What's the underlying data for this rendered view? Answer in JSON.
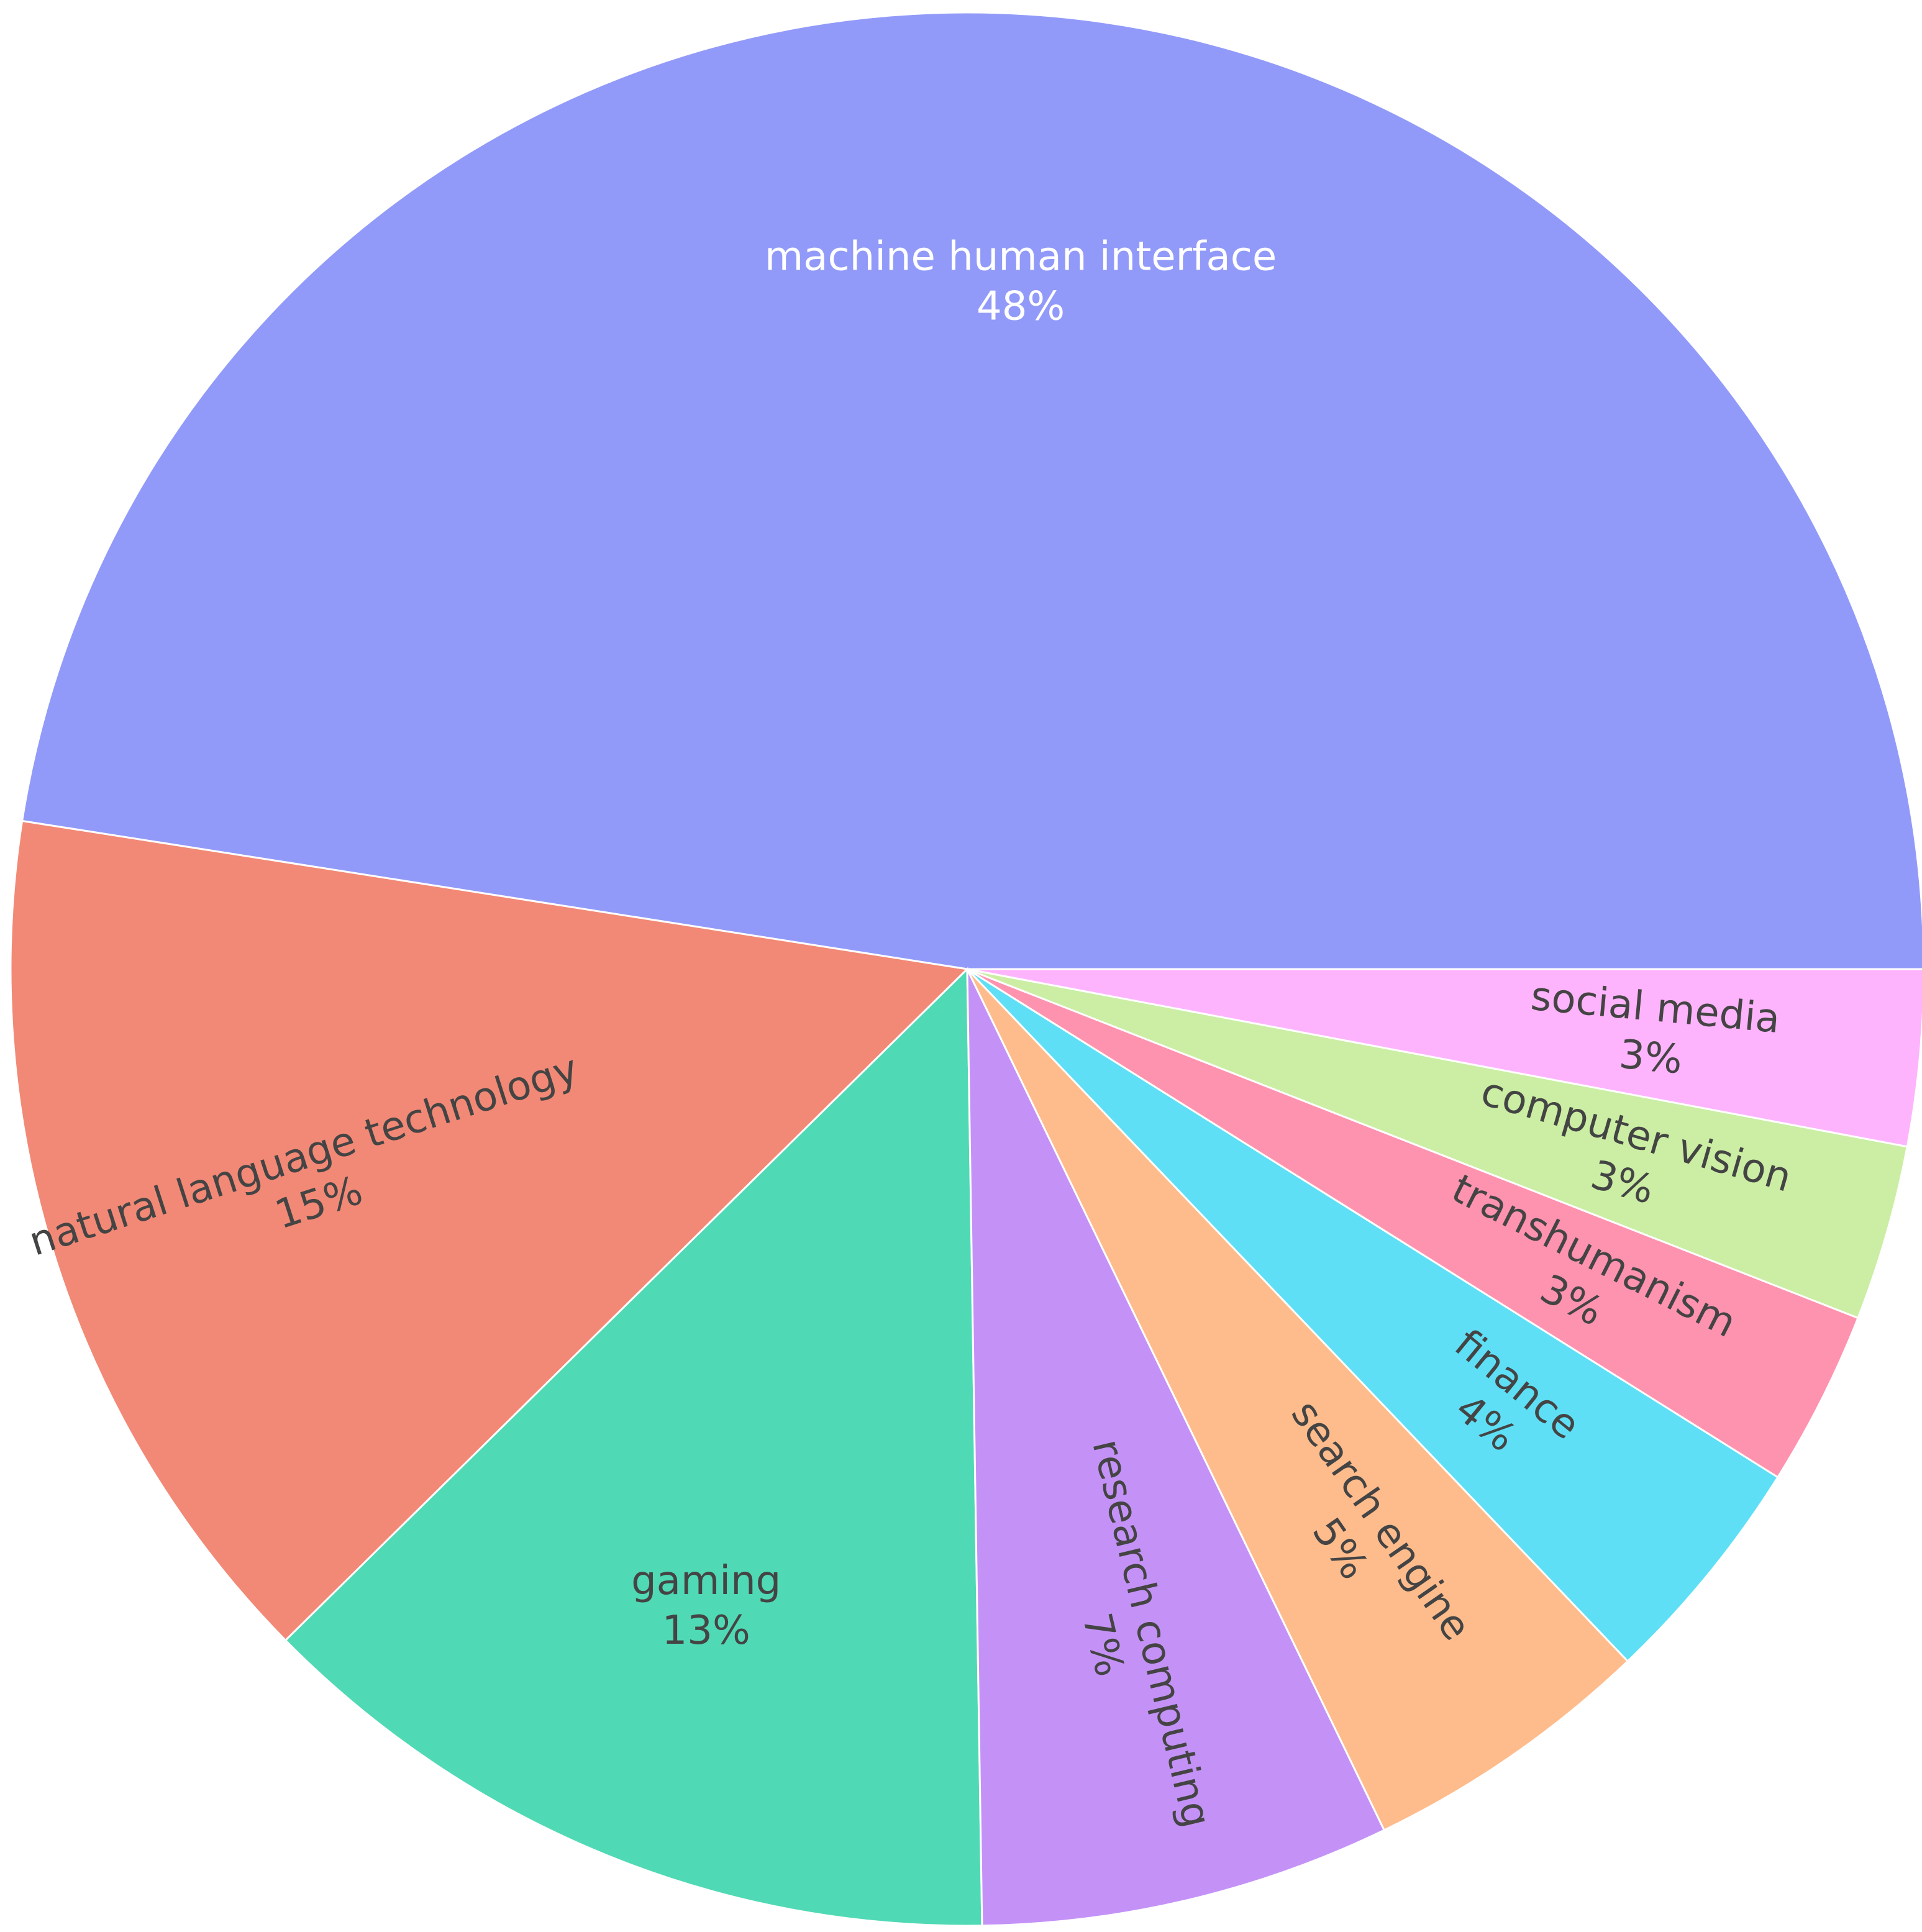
{
  "chart_data": {
    "type": "pie",
    "slices": [
      {
        "label": "machine human interface",
        "percent_label": "48%",
        "value": 48,
        "color": "#929af9",
        "text_color": "#ffffff"
      },
      {
        "label": "natural language technology",
        "percent_label": "15%",
        "value": 15,
        "color": "#f28976",
        "text_color": "#444444"
      },
      {
        "label": "gaming",
        "percent_label": "13%",
        "value": 13,
        "color": "#50d9b5",
        "text_color": "#444444"
      },
      {
        "label": "research computing",
        "percent_label": "7%",
        "value": 7,
        "color": "#c492f7",
        "text_color": "#444444"
      },
      {
        "label": "search engine",
        "percent_label": "5%",
        "value": 5,
        "color": "#febc8c",
        "text_color": "#444444"
      },
      {
        "label": "finance",
        "percent_label": "4%",
        "value": 4,
        "color": "#5fdff5",
        "text_color": "#444444"
      },
      {
        "label": "transhumanism",
        "percent_label": "3%",
        "value": 3,
        "color": "#fe93b0",
        "text_color": "#444444"
      },
      {
        "label": "computer vision",
        "percent_label": "3%",
        "value": 3,
        "color": "#cbeea4",
        "text_color": "#444444"
      },
      {
        "label": "social media",
        "percent_label": "3%",
        "value": 3,
        "color": "#feb4fc",
        "text_color": "#444444"
      }
    ],
    "start_angle_deg": 0,
    "direction": "counterclockwise",
    "slice_border_color": "#ffffff",
    "legend": "none"
  }
}
